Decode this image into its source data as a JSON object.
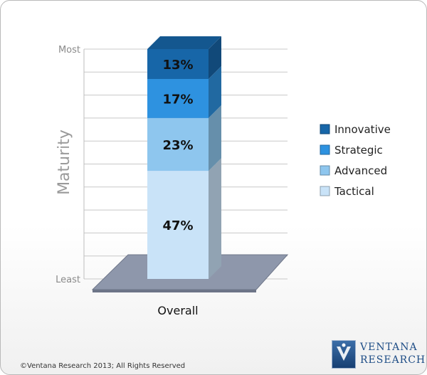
{
  "chart_data": {
    "type": "bar",
    "stacked": true,
    "categories": [
      "Overall"
    ],
    "series": [
      {
        "name": "Tactical",
        "values": [
          47
        ],
        "label": "47%",
        "color": "#c9e3f8"
      },
      {
        "name": "Advanced",
        "values": [
          23
        ],
        "label": "23%",
        "color": "#8ec6ee"
      },
      {
        "name": "Strategic",
        "values": [
          17
        ],
        "label": "17%",
        "color": "#2e92e0"
      },
      {
        "name": "Innovative",
        "values": [
          13
        ],
        "label": "13%",
        "color": "#1766a8"
      }
    ],
    "ylabel": "Maturity",
    "ytick_top": "Most",
    "ytick_bottom": "Least",
    "ylim": [
      0,
      100
    ],
    "grid": true,
    "legend": "right",
    "legend_order": [
      "Innovative",
      "Strategic",
      "Advanced",
      "Tactical"
    ]
  },
  "footer": {
    "copyright": "©Ventana Research 2013; All Rights Reserved",
    "logo_line1": "VENTANA",
    "logo_line2": "RESEARCH"
  }
}
